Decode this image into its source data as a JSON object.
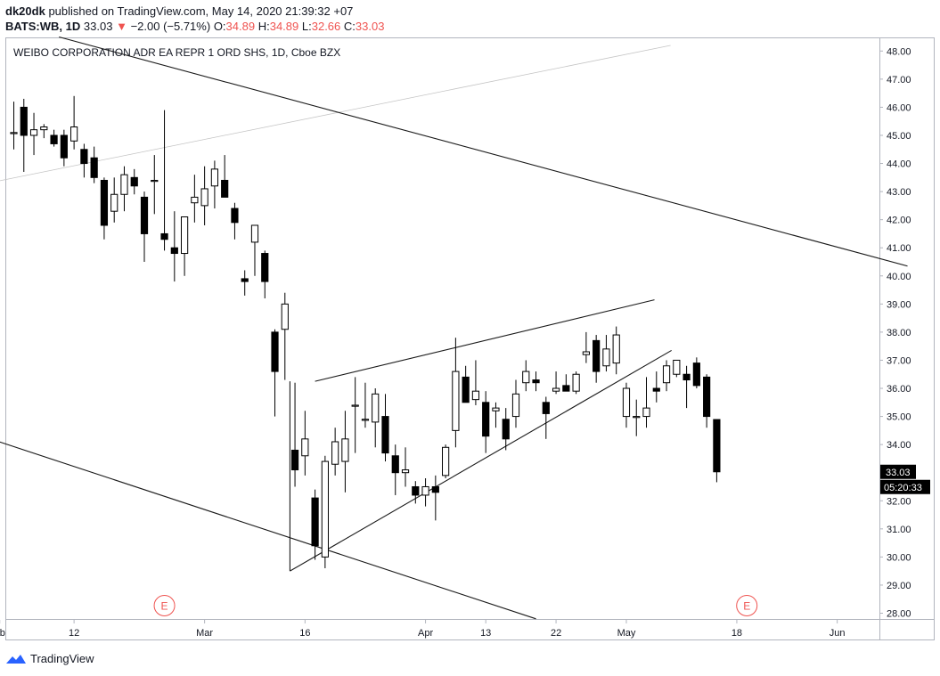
{
  "header": {
    "author": "dk20dk",
    "published_text": "published on TradingView.com, May 14, 2020 21:39:32 +07"
  },
  "quote": {
    "symbol": "BATS:WB, 1D",
    "last": "33.03",
    "change": "−2.00 (−5.71%)",
    "o_label": "O:",
    "o": "34.89",
    "h_label": "H:",
    "h": "34.89",
    "l_label": "L:",
    "l": "32.66",
    "c_label": "C:",
    "c": "33.03"
  },
  "footer": {
    "brand": "TradingView",
    "logo_icon": "tradingview-logo-icon"
  },
  "colors": {
    "down": "#000000",
    "up": "#ffffff",
    "last_price_bg": "#000000",
    "earnings": "#ef5350"
  },
  "chart_data": {
    "type": "candlestick",
    "title": "WEIBO CORPORATION ADR EA REPR 1 ORD SHS, 1D, Cboe BZX",
    "ylim": [
      27.7,
      48.4
    ],
    "y_ticks": [
      "48.00",
      "47.00",
      "46.00",
      "45.00",
      "44.00",
      "43.00",
      "42.00",
      "41.00",
      "40.00",
      "39.00",
      "38.00",
      "37.00",
      "36.00",
      "35.00",
      "34.00",
      "33.00",
      "32.00",
      "31.00",
      "30.00",
      "29.00",
      "28.00"
    ],
    "x_ticks": [
      {
        "label": "b",
        "bar": -1.4
      },
      {
        "label": "12",
        "bar": 6
      },
      {
        "label": "Mar",
        "bar": 19
      },
      {
        "label": "16",
        "bar": 29
      },
      {
        "label": "Apr",
        "bar": 41
      },
      {
        "label": "13",
        "bar": 47
      },
      {
        "label": "22",
        "bar": 54
      },
      {
        "label": "May",
        "bar": 61
      },
      {
        "label": "18",
        "bar": 72
      },
      {
        "label": "Jun",
        "bar": 82
      }
    ],
    "last_price": "33.03",
    "countdown": "05:20:33",
    "earnings_markers": [
      {
        "label": "E",
        "bar": 15
      },
      {
        "label": "E",
        "bar": 73
      }
    ],
    "candles": [
      [
        45.1,
        46.2,
        44.5,
        45.1
      ],
      [
        46.0,
        46.3,
        43.7,
        45.0
      ],
      [
        45.0,
        45.8,
        44.3,
        45.2
      ],
      [
        45.2,
        45.4,
        44.9,
        45.3
      ],
      [
        45.0,
        45.2,
        44.6,
        44.7
      ],
      [
        45.0,
        45.2,
        43.9,
        44.2
      ],
      [
        44.8,
        46.4,
        44.5,
        45.3
      ],
      [
        44.5,
        44.7,
        43.5,
        44.0
      ],
      [
        44.2,
        44.6,
        43.3,
        43.5
      ],
      [
        43.4,
        43.5,
        41.3,
        41.8
      ],
      [
        42.3,
        43.5,
        41.9,
        42.9
      ],
      [
        42.9,
        43.9,
        42.3,
        43.6
      ],
      [
        43.5,
        43.8,
        42.9,
        43.2
      ],
      [
        42.8,
        43.0,
        40.5,
        41.5
      ],
      [
        43.4,
        44.3,
        42.2,
        43.4
      ],
      [
        41.5,
        45.9,
        40.9,
        41.3
      ],
      [
        41.0,
        42.3,
        39.8,
        40.8
      ],
      [
        40.8,
        42.1,
        40.0,
        42.1
      ],
      [
        42.6,
        43.6,
        41.9,
        42.8
      ],
      [
        42.5,
        43.9,
        41.8,
        43.1
      ],
      [
        43.2,
        44.1,
        42.4,
        43.8
      ],
      [
        43.4,
        44.3,
        42.9,
        42.8
      ],
      [
        42.4,
        42.6,
        41.3,
        41.9
      ],
      [
        39.9,
        40.2,
        39.3,
        39.8
      ],
      [
        41.2,
        41.8,
        40.0,
        41.8
      ],
      [
        40.8,
        40.9,
        39.2,
        39.8
      ],
      [
        38.0,
        38.1,
        35.0,
        36.6
      ],
      [
        38.1,
        39.4,
        36.3,
        39.0
      ],
      [
        33.8,
        36.2,
        32.5,
        33.1
      ],
      [
        33.6,
        35.2,
        32.9,
        34.2
      ],
      [
        32.1,
        32.4,
        29.9,
        30.4
      ],
      [
        30.0,
        33.6,
        29.6,
        33.4
      ],
      [
        33.3,
        34.6,
        32.9,
        34.1
      ],
      [
        33.4,
        35.2,
        32.3,
        34.2
      ],
      [
        35.4,
        36.4,
        33.7,
        35.4
      ],
      [
        34.9,
        36.2,
        34.6,
        34.9
      ],
      [
        34.8,
        36.0,
        33.9,
        35.8
      ],
      [
        35.0,
        35.8,
        33.4,
        33.7
      ],
      [
        33.6,
        34.0,
        32.2,
        33.0
      ],
      [
        33.0,
        33.9,
        32.5,
        33.1
      ],
      [
        32.5,
        32.7,
        31.9,
        32.2
      ],
      [
        32.2,
        32.8,
        31.8,
        32.5
      ],
      [
        32.5,
        32.9,
        31.3,
        32.3
      ],
      [
        32.9,
        34.0,
        32.8,
        33.9
      ],
      [
        34.5,
        37.8,
        33.9,
        36.6
      ],
      [
        36.4,
        36.8,
        35.5,
        35.5
      ],
      [
        35.6,
        37.0,
        35.4,
        35.9
      ],
      [
        35.5,
        35.9,
        33.7,
        34.3
      ],
      [
        35.2,
        35.5,
        34.6,
        35.3
      ],
      [
        34.9,
        35.3,
        33.8,
        34.2
      ],
      [
        35.0,
        36.3,
        34.6,
        35.8
      ],
      [
        36.2,
        37.0,
        35.9,
        36.6
      ],
      [
        36.3,
        36.6,
        35.9,
        36.2
      ],
      [
        35.5,
        35.7,
        34.2,
        35.1
      ],
      [
        35.9,
        36.6,
        35.8,
        36.0
      ],
      [
        36.1,
        36.5,
        35.9,
        35.9
      ],
      [
        35.9,
        36.6,
        35.8,
        36.5
      ],
      [
        37.2,
        38.0,
        36.9,
        37.3
      ],
      [
        37.7,
        37.9,
        36.2,
        36.6
      ],
      [
        36.8,
        37.9,
        36.6,
        37.4
      ],
      [
        36.9,
        38.2,
        36.5,
        37.9
      ],
      [
        35.0,
        36.2,
        34.6,
        36.0
      ],
      [
        35.0,
        35.6,
        34.3,
        35.0
      ],
      [
        35.0,
        36.4,
        34.6,
        35.3
      ],
      [
        36.0,
        36.6,
        35.5,
        35.9
      ],
      [
        36.2,
        37.0,
        35.9,
        36.8
      ],
      [
        36.5,
        37.0,
        36.4,
        37.0
      ],
      [
        36.5,
        36.8,
        35.3,
        36.3
      ],
      [
        36.9,
        37.1,
        36.0,
        36.1
      ],
      [
        36.4,
        36.5,
        34.6,
        35.0
      ],
      [
        34.89,
        34.89,
        32.66,
        33.03
      ]
    ],
    "trendlines": [
      {
        "b1": -1.9,
        "v1": 43.35,
        "b2": 65.4,
        "v2": 48.2
      },
      {
        "b1": 4.5,
        "v1": 48.5,
        "b2": 89,
        "v2": 40.35
      },
      {
        "b1": -1.9,
        "v1": 34.15,
        "b2": 52,
        "v2": 27.8
      },
      {
        "b1": 30,
        "v1": 36.25,
        "b2": 63.8,
        "v2": 39.15
      },
      {
        "b1": 27.5,
        "v1": 29.5,
        "b2": 65.5,
        "v2": 37.35
      }
    ],
    "channel_marker": {
      "bar": 27.5,
      "top": 36.25,
      "bottom": 29.5
    }
  }
}
